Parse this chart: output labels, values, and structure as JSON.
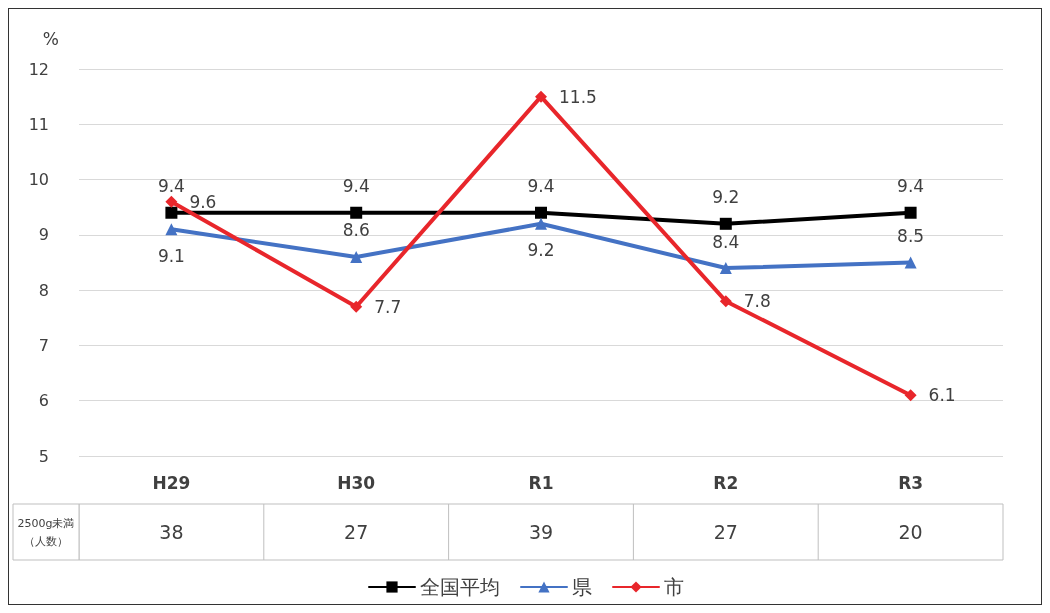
{
  "chart_data": {
    "type": "line",
    "ylabel": "%",
    "categories": [
      "H29",
      "H30",
      "R1",
      "R2",
      "R3"
    ],
    "series": [
      {
        "name": "全国平均",
        "color": "#000000",
        "marker": "square",
        "values": [
          9.4,
          9.4,
          9.4,
          9.2,
          9.4
        ]
      },
      {
        "name": "県",
        "color": "#4472c4",
        "marker": "triangle",
        "values": [
          9.1,
          8.6,
          9.2,
          8.4,
          8.5
        ]
      },
      {
        "name": "市",
        "color": "#e8262b",
        "marker": "diamond",
        "values": [
          9.6,
          7.7,
          11.5,
          7.8,
          6.1
        ]
      }
    ],
    "ylim": [
      5,
      12
    ],
    "yticks": [
      5,
      6,
      7,
      8,
      9,
      10,
      11,
      12
    ],
    "grid": "y",
    "legend": "bottom",
    "data_labels": true,
    "annotations": [
      "2500g未満（人数）",
      "38",
      "27",
      "39",
      "27",
      "20"
    ]
  }
}
